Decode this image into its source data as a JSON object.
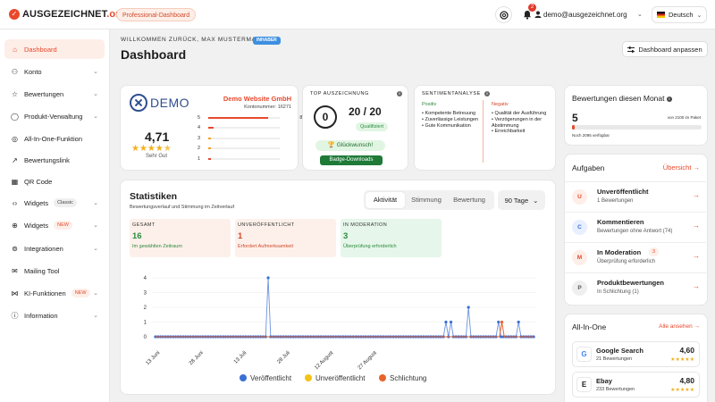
{
  "topbar": {
    "logo_text": "AUSGEZEICHNET",
    "logo_tld": ".org",
    "plan_badge": "Professional-Dashboard",
    "notification_count": "2",
    "user_email": "demo@ausgezeichnet.org",
    "language": "Deutsch"
  },
  "sidebar": {
    "items": [
      {
        "label": "Dashboard",
        "icon": "home-icon"
      },
      {
        "label": "Konto",
        "icon": "user-icon"
      },
      {
        "label": "Bewertungen",
        "icon": "star-icon"
      },
      {
        "label": "Produkt-Verwaltung",
        "icon": "box-icon"
      },
      {
        "label": "All-In-One-Funktion",
        "icon": "target-icon"
      },
      {
        "label": "Bewertungslink",
        "icon": "link-icon"
      },
      {
        "label": "QR Code",
        "icon": "qr-icon"
      },
      {
        "label": "Widgets",
        "icon": "code-icon",
        "tag": "Classic"
      },
      {
        "label": "Widgets",
        "icon": "globe-icon",
        "tag": "NEW"
      },
      {
        "label": "Integrationen",
        "icon": "integration-icon"
      },
      {
        "label": "Mailing Tool",
        "icon": "mail-icon"
      },
      {
        "label": "KI-Funktionen",
        "icon": "ai-icon",
        "tag": "NEW"
      },
      {
        "label": "Information",
        "icon": "info-icon"
      }
    ]
  },
  "header": {
    "welcome": "WILLKOMMEN ZURÜCK, MAX MUSTERMANN",
    "owner_badge": "INHABER",
    "title": "Dashboard",
    "customize_button": "Dashboard anpassen"
  },
  "company": {
    "logo_text": "DEMO",
    "name": "Demo Website GmbH",
    "customer_number": "Kontonummer: 16271",
    "rating": "4,71",
    "rating_word": "Sehr Gut",
    "distribution": [
      {
        "stars": "5",
        "percent": "84,2%",
        "value": 84.2,
        "color": "#e8482b"
      },
      {
        "stars": "4",
        "percent": "7,9%",
        "value": 7.9,
        "color": "#e8482b"
      },
      {
        "stars": "3",
        "percent": "2,6%",
        "value": 2.6,
        "color": "#f2a01e"
      },
      {
        "stars": "2",
        "percent": "1,3%",
        "value": 1.3,
        "color": "#f2a01e"
      },
      {
        "stars": "1",
        "percent": "3,9%",
        "value": 3.9,
        "color": "#e8482b"
      }
    ]
  },
  "award": {
    "label": "TOP AUSZEICHNUNG",
    "circle_value": "0",
    "score": "20 / 20",
    "qualified": "Qualifiziert",
    "congrats": "Glückwunsch!",
    "downloads_button": "Badge-Downloads"
  },
  "sentiment": {
    "label": "SENTIMENTANALYSE",
    "positive_head": "Positiv",
    "positive": [
      "Kompetente Betreuung",
      "Zuverlässige Leistungen",
      "Gute Kommunikation"
    ],
    "negative_head": "Negativ",
    "negative": [
      "Qualität der Ausführung",
      "Verzögerungen in der Abstimmung",
      "Erreichbarkeit"
    ]
  },
  "monthly": {
    "title": "Bewertungen diesen Monat",
    "value": "5",
    "remaining": "von 2100 im Paket",
    "available": "Noch 2095 verfügbar",
    "fraction": 0.0024
  },
  "stats": {
    "title": "Statistiken",
    "subtitle": "Bewertungsverlauf und Stimmung im Zeitverlauf",
    "tabs": [
      "Aktivität",
      "Stimmung",
      "Bewertung"
    ],
    "period": "90 Tage",
    "kpis": [
      {
        "label": "GESAMT",
        "value": "16",
        "note": "Im gewählten Zeitraum",
        "bg": "#fdf0ea",
        "color": "#2b8a3e"
      },
      {
        "label": "UNVERÖFFENTLICHT",
        "value": "1",
        "note": "Erfordert Aufmerksamkeit",
        "bg": "#fdf0ea",
        "color": "#d14a2a"
      },
      {
        "label": "IN MODERATION",
        "value": "3",
        "note": "Überprüfung erforderlich",
        "bg": "#e6f6ea",
        "color": "#2b8a3e"
      }
    ]
  },
  "chart_data": {
    "type": "line",
    "ylim": [
      0,
      4
    ],
    "yticks": [
      "0",
      "1",
      "2",
      "3",
      "4"
    ],
    "xticks": [
      "13 Juni",
      "28 Juni",
      "13 Juli",
      "28 Juli",
      "12 August",
      "27 August"
    ],
    "legend_position": "bottom",
    "grid": true,
    "series": [
      {
        "name": "Veröffentlicht",
        "color": "#3b6fd6",
        "values": [
          0,
          0,
          0,
          0,
          0,
          0,
          0,
          0,
          0,
          0,
          0,
          0,
          0,
          0,
          0,
          0,
          0,
          0,
          0,
          0,
          0,
          0,
          0,
          0,
          0,
          0,
          0,
          0,
          0,
          0,
          0,
          0,
          0,
          0,
          0,
          0,
          0,
          0,
          0,
          0,
          0,
          0,
          0,
          0,
          0,
          4,
          0,
          0,
          0,
          0,
          0,
          0,
          0,
          0,
          0,
          0,
          0,
          0,
          0,
          0,
          0,
          0,
          0,
          0,
          0,
          0,
          0,
          0,
          0,
          0,
          0,
          0,
          0,
          0,
          0,
          0,
          0,
          0,
          0,
          0,
          0,
          0,
          0,
          0,
          0,
          0,
          0,
          0,
          0,
          0,
          0,
          0,
          0,
          0,
          0,
          0,
          0,
          0,
          0,
          0,
          0,
          0,
          0,
          0,
          0,
          0,
          0,
          0,
          0,
          0,
          0,
          0,
          0,
          0,
          0,
          0,
          1,
          0,
          1,
          0,
          0,
          0,
          0,
          0,
          0,
          2,
          0,
          0,
          0,
          0,
          0,
          0,
          0,
          0,
          0,
          0,
          0,
          1,
          0,
          0,
          0,
          0,
          0,
          0,
          0,
          1,
          0,
          0,
          0,
          0,
          0,
          0
        ]
      },
      {
        "name": "Unveröffentlicht",
        "color": "#f2c318",
        "values": []
      },
      {
        "name": "Schlichtung",
        "color": "#e8632b",
        "values": [
          0,
          0,
          0,
          0,
          0,
          0,
          0,
          0,
          0,
          0,
          0,
          0,
          0,
          0,
          0,
          0,
          0,
          0,
          0,
          0,
          0,
          0,
          0,
          0,
          0,
          0,
          0,
          0,
          0,
          0,
          0,
          0,
          0,
          0,
          0,
          0,
          0,
          0,
          0,
          0,
          0,
          0,
          0,
          0,
          0,
          0,
          0,
          0,
          0,
          0,
          0,
          0,
          0,
          0,
          0,
          0,
          0,
          0,
          0,
          0,
          0,
          0,
          0,
          0,
          0,
          0,
          0,
          0,
          0,
          0,
          0,
          0,
          0,
          0,
          0,
          0,
          0,
          0,
          0,
          0,
          0,
          0,
          0,
          0,
          0,
          0,
          0,
          0,
          0,
          0,
          0,
          0,
          0,
          0,
          0,
          0,
          0,
          0,
          0,
          0,
          0,
          0,
          0,
          0,
          0,
          0,
          0,
          0,
          0,
          0,
          0,
          0,
          0,
          0,
          0,
          0,
          0,
          0,
          0,
          0,
          0,
          0,
          0,
          0,
          0,
          0,
          0,
          0,
          0,
          0,
          0,
          0,
          0,
          0,
          0,
          0,
          0,
          0,
          0,
          0,
          0,
          0,
          1,
          0,
          0,
          0,
          0,
          0,
          0,
          0,
          0,
          0,
          0,
          0,
          0,
          0
        ]
      }
    ]
  },
  "tasks": {
    "title": "Aufgaben",
    "link": "Übersicht →",
    "items": [
      {
        "letter": "U",
        "title": "Unveröffentlicht",
        "sub": "1 Bewertungen",
        "bg": "#fdeee8",
        "fg": "#e8482b"
      },
      {
        "letter": "C",
        "title": "Kommentieren",
        "sub": "Bewertungen ohne Antwort (74)",
        "bg": "#e8efff",
        "fg": "#3b6fd6"
      },
      {
        "letter": "M",
        "title": "In Moderation",
        "sub": "Überprüfung erforderlich",
        "bg": "#fdeee8",
        "fg": "#e8482b",
        "count": "3"
      },
      {
        "letter": "P",
        "title": "Produktbewertungen",
        "sub": "In Schlichtung (1)",
        "bg": "#efefef",
        "fg": "#555"
      }
    ]
  },
  "allinone": {
    "title": "All-In-One",
    "link": "Alle ansehen →",
    "platforms": [
      {
        "logo": "G",
        "name": "Google Search",
        "count": "21 Bewertungen",
        "score": "4,60",
        "stars": "★★★★★"
      },
      {
        "logo": "E",
        "name": "Ebay",
        "count": "233 Bewertungen",
        "score": "4,80",
        "stars": "★★★★★"
      }
    ]
  }
}
